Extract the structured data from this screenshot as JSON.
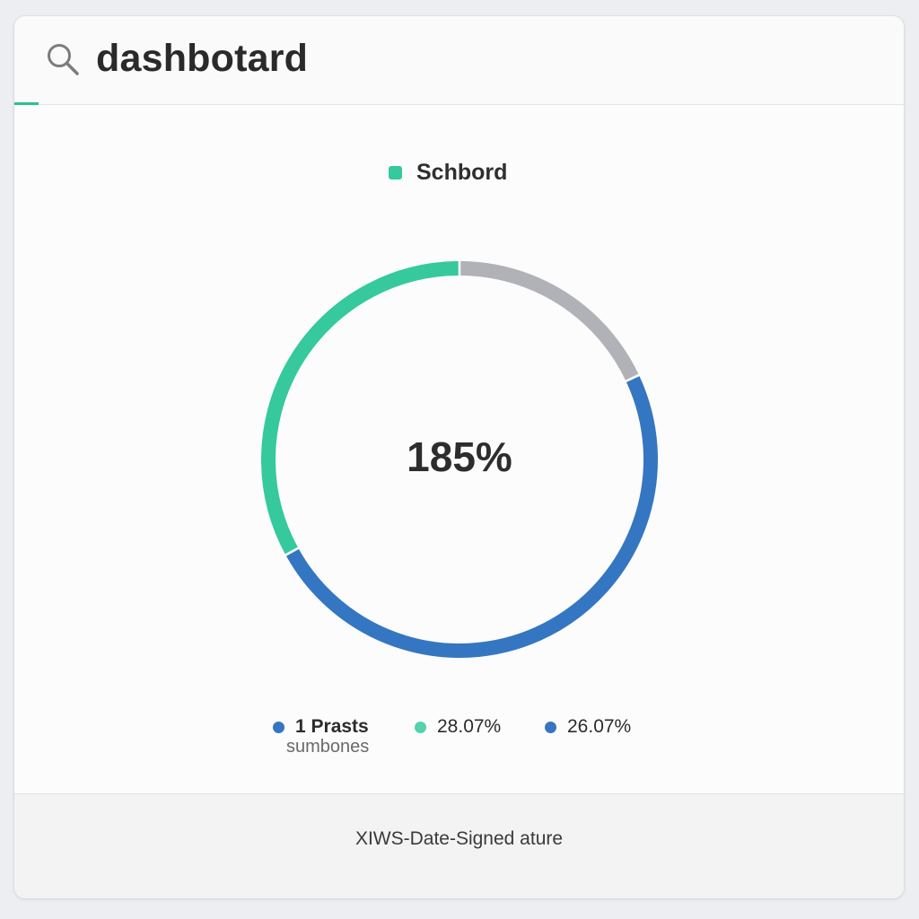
{
  "header": {
    "title": "dashbotard",
    "search_icon": "search-icon"
  },
  "legend": {
    "label": "Schbord",
    "color": "#35c99d"
  },
  "chart_data": {
    "type": "pie",
    "style": "donut",
    "center_label": "185%",
    "slices": [
      {
        "value": 18,
        "color": "#b0b2b7"
      },
      {
        "value": 49,
        "color": "#3476c2"
      },
      {
        "value": 33,
        "color": "#35c99d"
      }
    ]
  },
  "stats": [
    {
      "label": "1 Prasts",
      "sublabel": "sumbones",
      "color": "#3476c2"
    },
    {
      "label": "28.07%",
      "color": "#52d3ab"
    },
    {
      "label": "26.07%",
      "color": "#3a73bf"
    }
  ],
  "footer": {
    "text": "XIWS-Date-Signed ature"
  },
  "colors": {
    "accent": "#2bbf93",
    "background": "#eceef2",
    "card": "#fafafa"
  }
}
